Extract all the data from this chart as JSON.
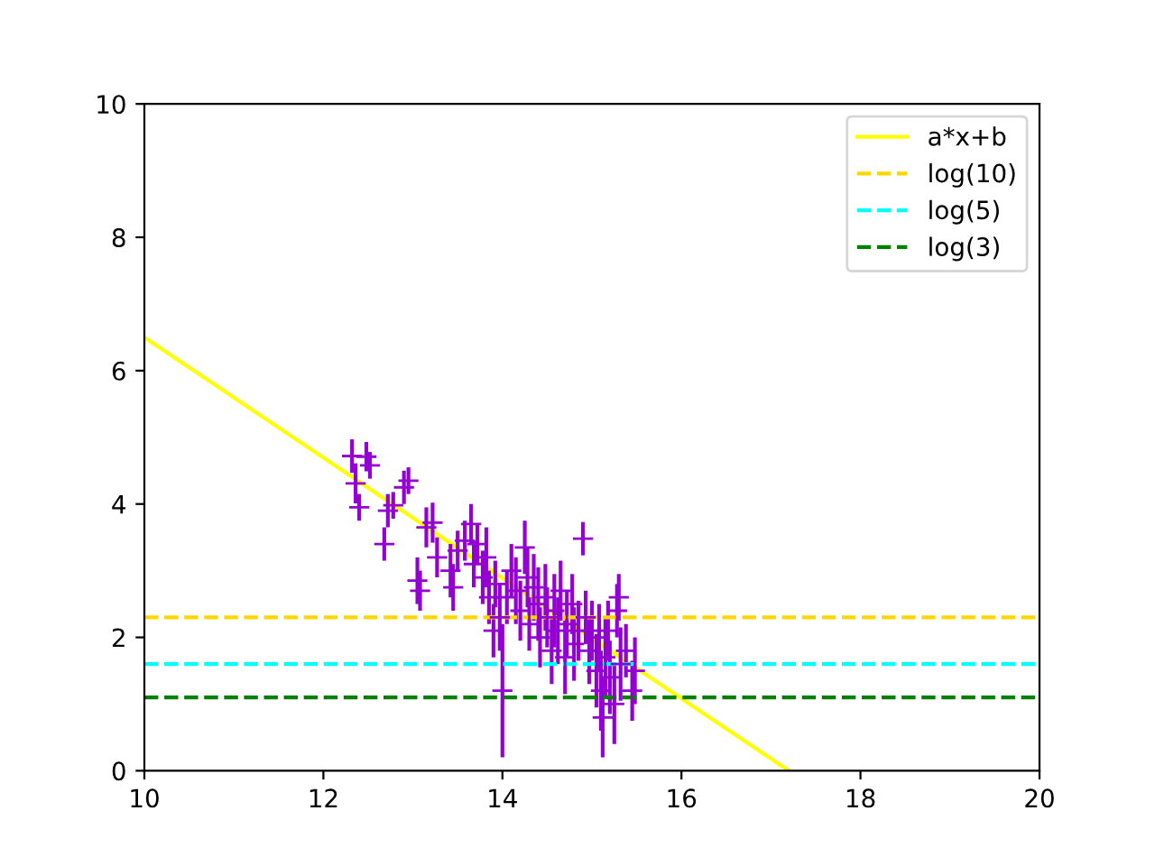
{
  "chart_data": {
    "type": "scatter",
    "xlim": [
      10,
      20
    ],
    "ylim": [
      0,
      10
    ],
    "xticks": [
      10,
      12,
      14,
      16,
      18,
      20
    ],
    "yticks": [
      0,
      2,
      4,
      6,
      8,
      10
    ],
    "grid": false,
    "legend": "top right",
    "series": [
      {
        "type": "line",
        "name": "a*x+b",
        "color": "#ffff00",
        "x": [
          10,
          17.2
        ],
        "values": [
          6.5,
          0
        ],
        "line_style": "solid",
        "marker": "none"
      },
      {
        "color": "#9400d3",
        "marker": "cross",
        "x": [
          12.32,
          12.36,
          12.4,
          12.48,
          12.52,
          12.68,
          12.72,
          12.78,
          12.9,
          12.95,
          13.05,
          13.08,
          13.15,
          13.22,
          13.27,
          13.42,
          13.45,
          13.5,
          13.58,
          13.65,
          13.68,
          13.72,
          13.78,
          13.82,
          13.85,
          13.9,
          13.92,
          13.97,
          14.0,
          14.05,
          14.1,
          14.15,
          14.2,
          14.25,
          14.28,
          14.3,
          14.35,
          14.4,
          14.42,
          14.48,
          14.5,
          14.55,
          14.58,
          14.62,
          14.65,
          14.7,
          14.72,
          14.78,
          14.8,
          14.85,
          14.9,
          14.93,
          14.97,
          15.0,
          15.05,
          15.08,
          15.1,
          15.12,
          15.15,
          15.18,
          15.2,
          15.25,
          15.28,
          15.3,
          15.32,
          15.38,
          15.45,
          15.48
        ],
        "values": [
          4.72,
          4.31,
          3.95,
          4.71,
          4.58,
          3.4,
          3.9,
          3.98,
          4.25,
          4.35,
          2.85,
          2.7,
          3.65,
          3.72,
          3.2,
          3.0,
          2.75,
          3.3,
          3.45,
          3.7,
          3.1,
          3.4,
          2.9,
          3.2,
          2.6,
          2.1,
          2.8,
          2.3,
          1.2,
          2.6,
          3.0,
          2.7,
          2.4,
          3.35,
          2.9,
          2.2,
          2.75,
          2.5,
          2.0,
          2.6,
          2.3,
          1.8,
          2.4,
          2.1,
          2.7,
          1.7,
          2.2,
          2.5,
          1.9,
          2.1,
          3.48,
          2.3,
          1.8,
          2.1,
          1.5,
          2.0,
          1.2,
          0.8,
          1.7,
          2.1,
          1.4,
          1.0,
          2.4,
          2.6,
          1.6,
          1.8,
          1.2,
          1.5
        ],
        "errors": [
          0.25,
          0.3,
          0.2,
          0.22,
          0.2,
          0.25,
          0.25,
          0.2,
          0.25,
          0.2,
          0.35,
          0.3,
          0.3,
          0.3,
          0.3,
          0.4,
          0.35,
          0.3,
          0.3,
          0.3,
          0.35,
          0.3,
          0.4,
          0.45,
          0.4,
          0.4,
          0.35,
          0.5,
          1.0,
          0.4,
          0.4,
          0.5,
          0.45,
          0.4,
          0.45,
          0.4,
          0.5,
          0.55,
          0.45,
          0.5,
          0.45,
          0.5,
          0.55,
          0.5,
          0.45,
          0.55,
          0.5,
          0.45,
          0.55,
          0.45,
          0.25,
          0.4,
          0.5,
          0.45,
          0.55,
          0.5,
          0.6,
          0.6,
          0.6,
          0.45,
          0.55,
          0.6,
          0.4,
          0.35,
          0.55,
          0.4,
          0.45,
          0.5
        ]
      }
    ],
    "ref_lines": [
      {
        "axis": "y",
        "value": 2.3,
        "label": "log(10)",
        "color": "#ffd700",
        "line_style": "dashed"
      },
      {
        "axis": "y",
        "value": 1.6,
        "label": "log(5)",
        "color": "#00ffff",
        "line_style": "dashed"
      },
      {
        "axis": "y",
        "value": 1.1,
        "label": "log(3)",
        "color": "#008000",
        "line_style": "dashed"
      }
    ]
  }
}
